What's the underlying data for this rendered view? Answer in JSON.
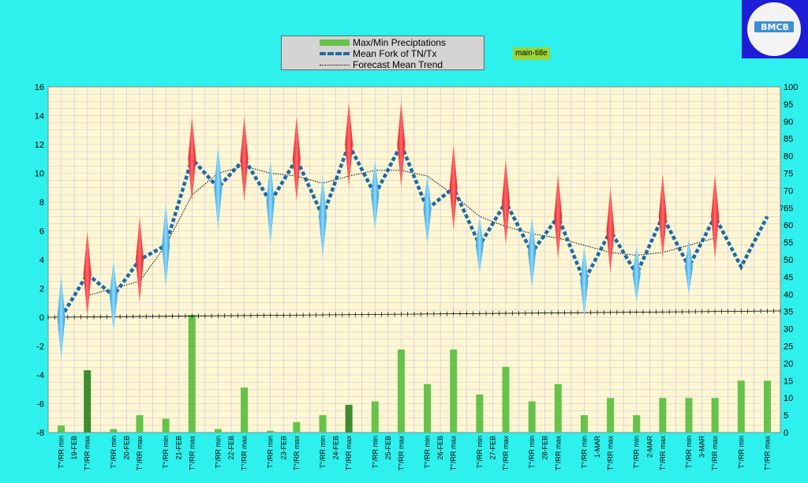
{
  "colors": {
    "background": "#2ef0ec",
    "plot_area": "#fef7d2",
    "grid": "#c9c2e0",
    "bar": "#66c24a",
    "bar_dark": "#3f8c2f",
    "mean_line": "#1b6aa8",
    "trend_line": "#000000",
    "max_marker": "#e0202a",
    "min_marker": "#2e9fd8"
  },
  "main_title": "main-title",
  "logo": {
    "text": "BMCB"
  },
  "legend": {
    "items": [
      {
        "label": "Max/Min Preciptations"
      },
      {
        "label": "Mean Fork of TN/Tx"
      },
      {
        "label": "Forecast Mean Trend"
      }
    ]
  },
  "chart_data": {
    "type": "bar",
    "categories": [
      "T°/RR min",
      "T°/RR max",
      "T°/RR min",
      "T°/RR max",
      "T°/RR min",
      "T°/RR max",
      "T°/RR min",
      "T°/RR max",
      "T°/RR min",
      "T°/RR max",
      "T°/RR min",
      "T°/RR max",
      "T°/RR min",
      "T°/RR max",
      "T°/RR min",
      "T°/RR max",
      "T°/RR min",
      "T°/RR max",
      "T°/RR min",
      "T°/RR max",
      "T°/RR min",
      "T°/RR max",
      "T°/RR min",
      "T°/RR max",
      "T°/RR min",
      "T°/RR max",
      "T°/RR min",
      "T°/RR max"
    ],
    "date_labels": [
      "19-FEB",
      "20-FEB",
      "21-FEB",
      "22-FEB",
      "23-FEB",
      "24-FEB",
      "25-FEB",
      "26-FEB",
      "27-FEB",
      "28-FEB",
      "1-MAR",
      "2-MAR",
      "3-MAR"
    ],
    "ylim": [
      -8,
      16
    ],
    "yticks": [
      -8,
      -6,
      -4,
      -2,
      0,
      2,
      4,
      6,
      8,
      10,
      12,
      14,
      16
    ],
    "y2lim": [
      0,
      100
    ],
    "y2ticks": [
      0,
      5,
      10,
      15,
      20,
      25,
      30,
      35,
      40,
      45,
      50,
      55,
      60,
      65,
      70,
      75,
      80,
      85,
      90,
      95,
      100
    ],
    "grid": true,
    "legend_position": "top-center",
    "series": [
      {
        "name": "Max/Min Preciptations",
        "type": "bar",
        "axis": "right",
        "values": [
          2,
          18,
          1,
          5,
          4,
          34,
          1,
          13,
          0.5,
          3,
          5,
          8,
          9,
          24,
          14,
          24,
          11,
          19,
          9,
          14,
          5,
          10,
          5,
          10,
          10,
          10,
          15,
          15
        ],
        "dark": [
          false,
          true,
          false,
          false,
          false,
          false,
          false,
          false,
          false,
          false,
          false,
          true,
          false,
          false,
          false,
          false,
          false,
          false,
          false,
          false,
          false,
          false,
          false,
          false,
          false,
          false,
          false,
          false
        ]
      },
      {
        "name": "Mean Fork of TN/Tx",
        "type": "line",
        "axis": "left",
        "values": [
          0,
          3,
          1.5,
          4,
          5,
          11,
          9,
          11,
          8,
          11,
          7,
          12,
          8.5,
          12,
          7.5,
          9,
          5,
          8,
          4.5,
          7,
          2.5,
          6,
          3,
          7,
          3.5,
          7,
          3.5,
          7
        ]
      },
      {
        "name": "Forecast Mean Trend",
        "type": "line",
        "axis": "left",
        "values": [
          null,
          1.5,
          2,
          2.5,
          5,
          8.5,
          10,
          10.5,
          10,
          9.8,
          9.3,
          9.8,
          10.2,
          10.2,
          9.8,
          8.5,
          7,
          6.3,
          5.8,
          5.5,
          5,
          4.5,
          4.3,
          4.5,
          5,
          5.5,
          null,
          null
        ]
      },
      {
        "name": "Tmax markers",
        "type": "marker",
        "axis": "left",
        "values": [
          null,
          6,
          null,
          7,
          null,
          14,
          null,
          14,
          null,
          14,
          null,
          15,
          null,
          15,
          null,
          12,
          null,
          11,
          null,
          10,
          null,
          9,
          null,
          10,
          null,
          10,
          null,
          null
        ]
      },
      {
        "name": "Tmin markers",
        "type": "marker",
        "axis": "left",
        "values": [
          3,
          null,
          4,
          null,
          8,
          null,
          12,
          null,
          11,
          null,
          10,
          null,
          11,
          null,
          10,
          null,
          7,
          null,
          7,
          null,
          5,
          null,
          5,
          null,
          5.5,
          null,
          null,
          null
        ]
      }
    ],
    "end_label": "7"
  }
}
